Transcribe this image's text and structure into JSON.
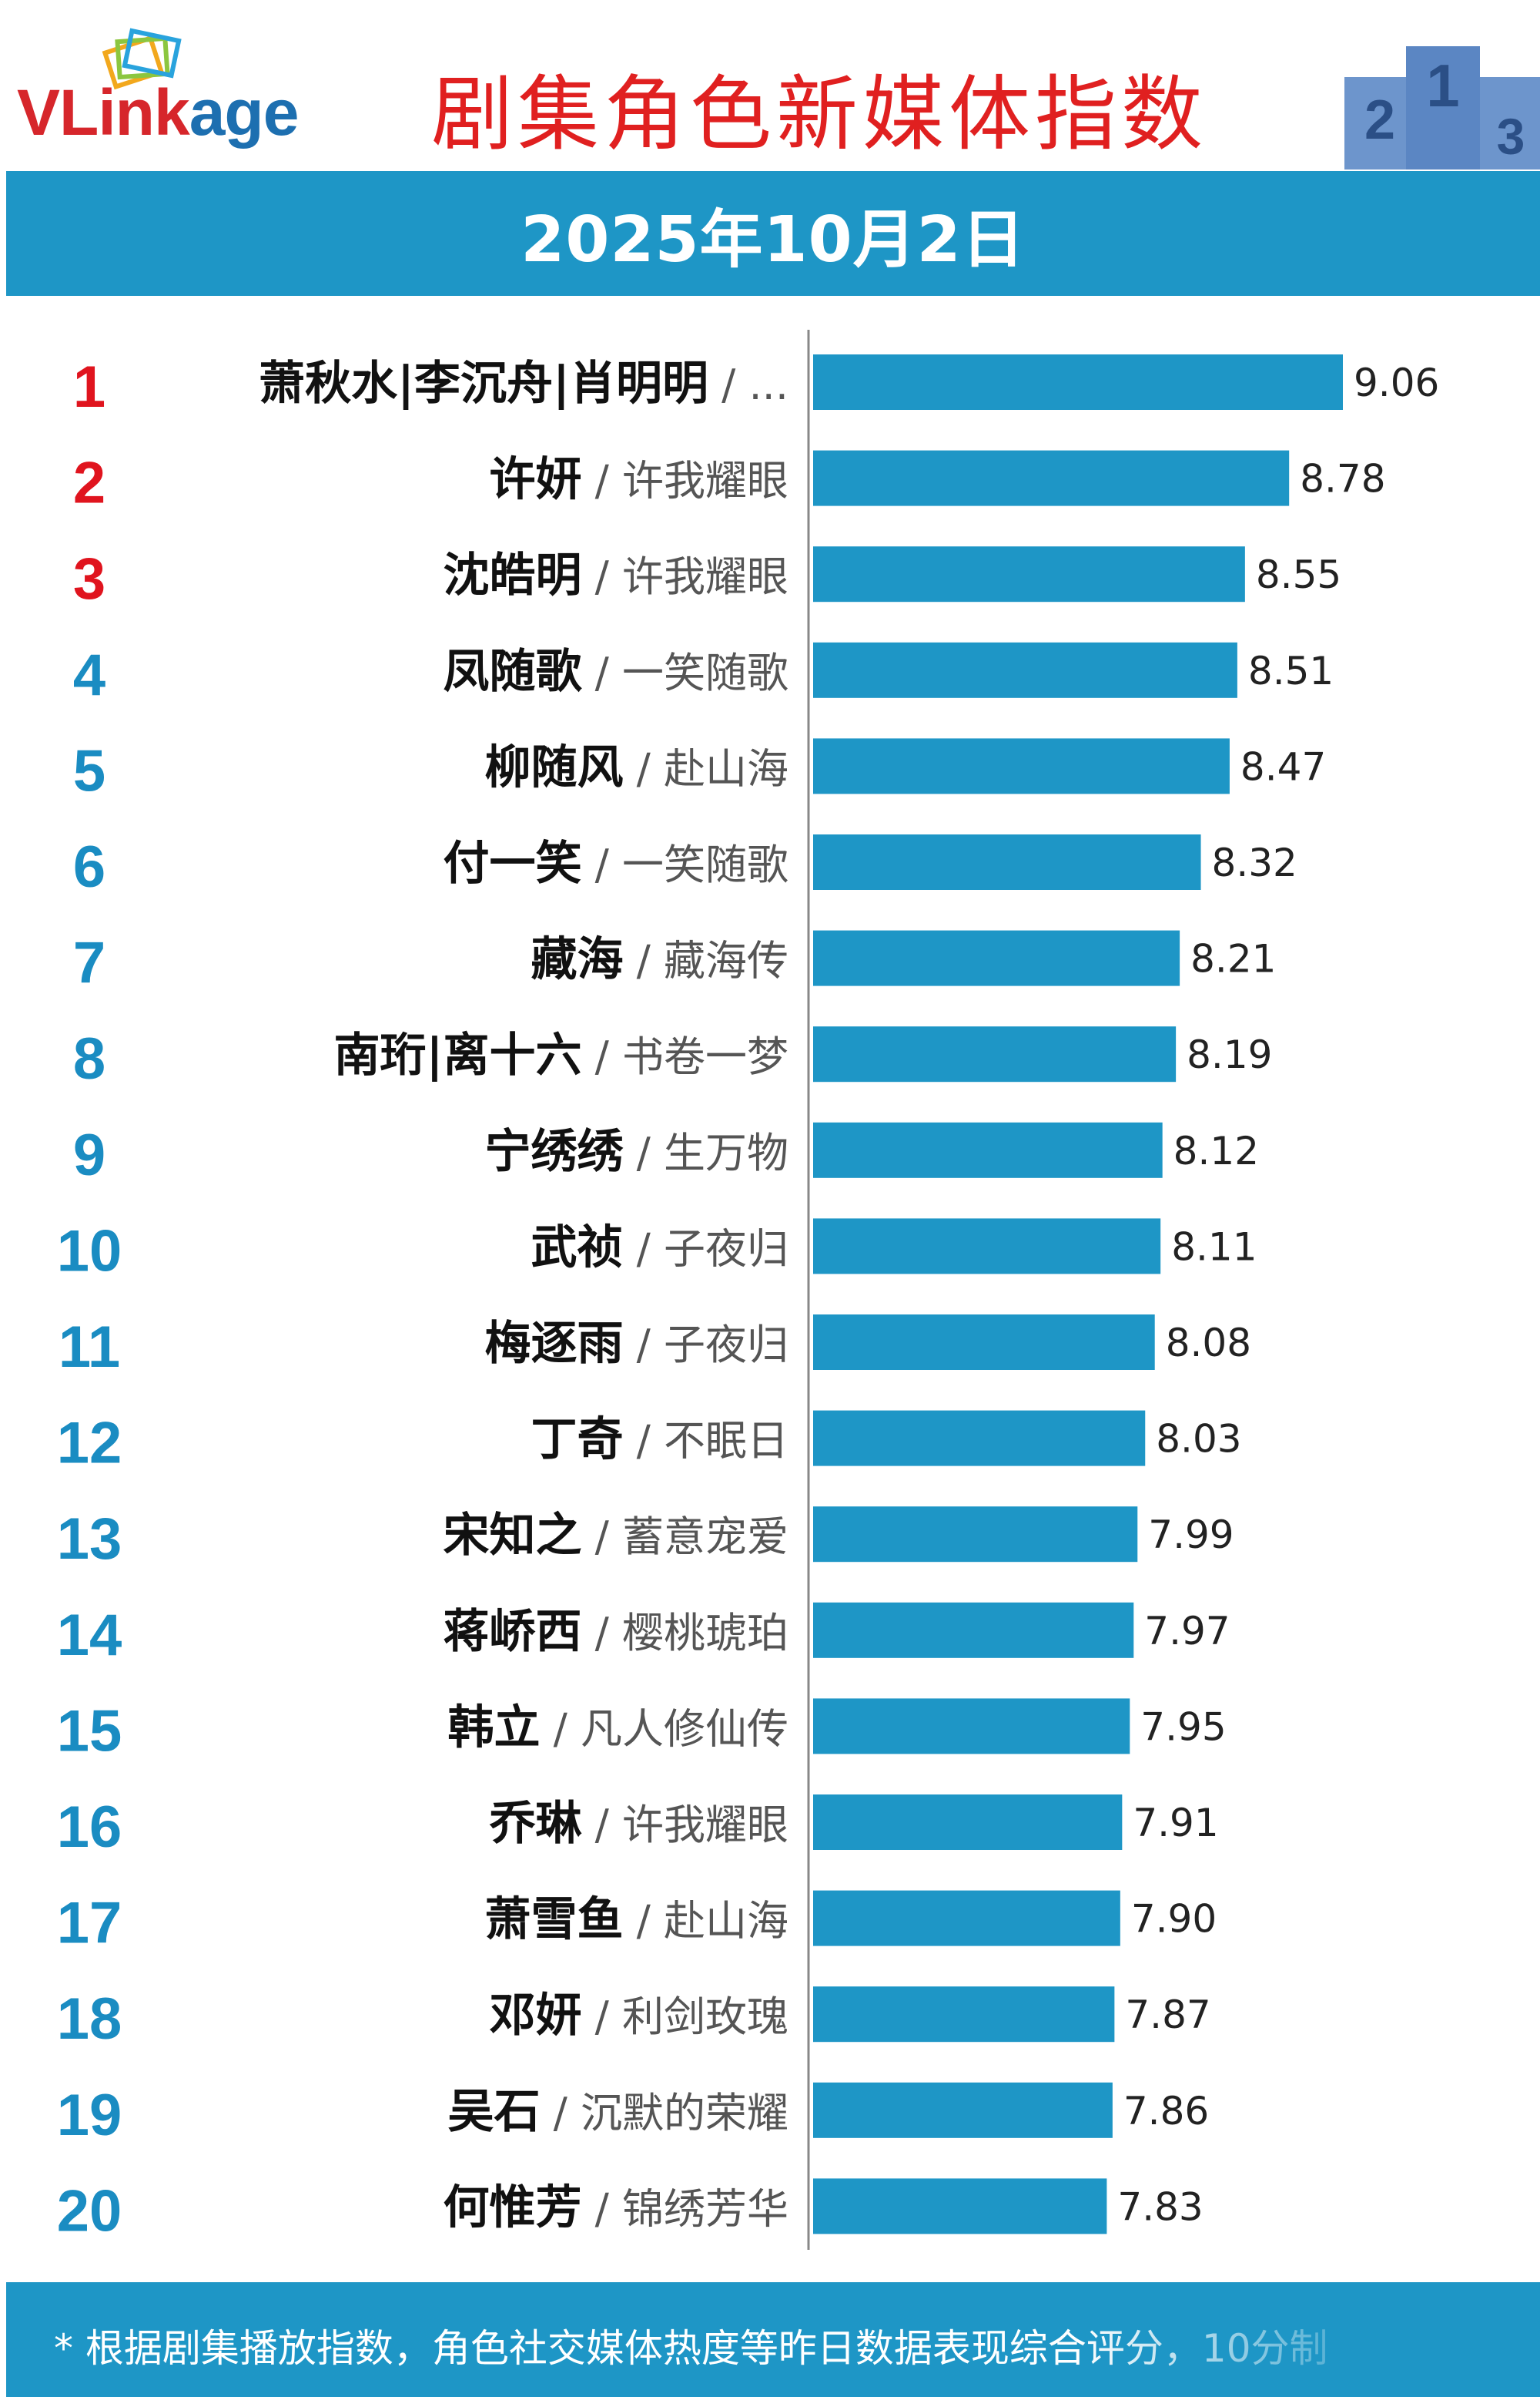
{
  "brand": {
    "logo_text_red": "VLink",
    "logo_text_blue": "age"
  },
  "title": "剧集角色新媒体指数",
  "date": "2025年10月2日",
  "podium_labels": [
    "2",
    "1",
    "3"
  ],
  "colors": {
    "bar": "#1e96c6",
    "title": "#e02020",
    "rank_top3": "#e0141e",
    "rank_rest": "#1a8cc2",
    "name": "#111111",
    "drama": "#555555",
    "value": "#222222"
  },
  "footnote": "* 根据剧集播放指数，角色社交媒体热度等昨日数据表现综合评分，10分制",
  "chart_data": {
    "type": "bar",
    "orientation": "horizontal",
    "title": "剧集角色新媒体指数",
    "xlim": [
      6.3,
      9.06
    ],
    "grid": false,
    "legend": "none",
    "items": [
      {
        "rank": "1",
        "name": "萧秋水|李沉舟|肖明明",
        "drama": "...",
        "value": 9.06
      },
      {
        "rank": "2",
        "name": "许妍",
        "drama": "许我耀眼",
        "value": 8.78
      },
      {
        "rank": "3",
        "name": "沈皓明",
        "drama": "许我耀眼",
        "value": 8.55
      },
      {
        "rank": "4",
        "name": "凤随歌",
        "drama": "一笑随歌",
        "value": 8.51
      },
      {
        "rank": "5",
        "name": "柳随风",
        "drama": "赴山海",
        "value": 8.47
      },
      {
        "rank": "6",
        "name": "付一笑",
        "drama": "一笑随歌",
        "value": 8.32
      },
      {
        "rank": "7",
        "name": "藏海",
        "drama": "藏海传",
        "value": 8.21
      },
      {
        "rank": "8",
        "name": "南珩|离十六",
        "drama": "书卷一梦",
        "value": 8.19
      },
      {
        "rank": "9",
        "name": "宁绣绣",
        "drama": "生万物",
        "value": 8.12
      },
      {
        "rank": "10",
        "name": "武祯",
        "drama": "子夜归",
        "value": 8.11
      },
      {
        "rank": "11",
        "name": "梅逐雨",
        "drama": "子夜归",
        "value": 8.08
      },
      {
        "rank": "12",
        "name": "丁奇",
        "drama": "不眠日",
        "value": 8.03
      },
      {
        "rank": "13",
        "name": "宋知之",
        "drama": "蓄意宠爱",
        "value": 7.99
      },
      {
        "rank": "14",
        "name": "蒋峤西",
        "drama": "樱桃琥珀",
        "value": 7.97
      },
      {
        "rank": "15",
        "name": "韩立",
        "drama": "凡人修仙传",
        "value": 7.95
      },
      {
        "rank": "16",
        "name": "乔琳",
        "drama": "许我耀眼",
        "value": 7.91
      },
      {
        "rank": "17",
        "name": "萧雪鱼",
        "drama": "赴山海",
        "value": 7.9
      },
      {
        "rank": "18",
        "name": "邓妍",
        "drama": "利剑玫瑰",
        "value": 7.87
      },
      {
        "rank": "19",
        "name": "吴石",
        "drama": "沉默的荣耀",
        "value": 7.86
      },
      {
        "rank": "20",
        "name": "何惟芳",
        "drama": "锦绣芳华",
        "value": 7.83
      }
    ]
  }
}
